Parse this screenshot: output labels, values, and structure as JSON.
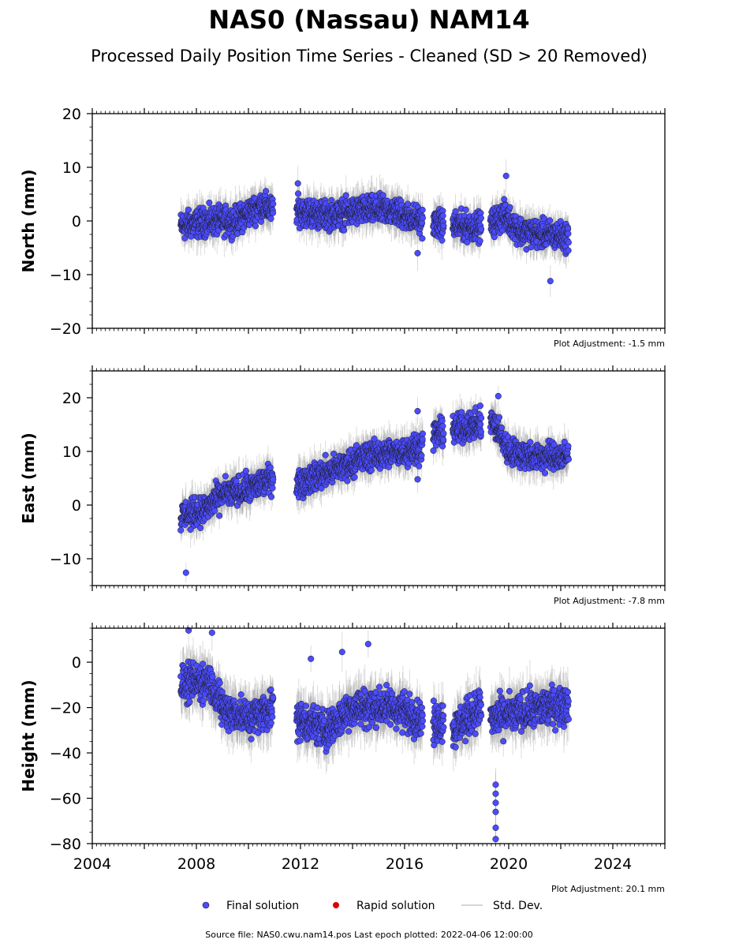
{
  "title": "NAS0 (Nassau) NAM14",
  "subtitle": "Processed Daily Position Time Series - Cleaned (SD > 20 Removed)",
  "source_text": "Source file: NAS0.cwu.nam14.pos  Last epoch plotted: 2022-04-06 12:00:00",
  "legend": [
    {
      "label": "Final solution",
      "color": "#4b4bff",
      "marker": "circle"
    },
    {
      "label": "Rapid solution",
      "color": "#dd0000",
      "marker": "circle"
    },
    {
      "label": "Std. Dev.",
      "color": "#c8c8c8",
      "marker": "line"
    }
  ],
  "colors": {
    "final": "#4b4bff",
    "final_edge": "#1a1a1a",
    "std_dev": "#9a9a9a"
  },
  "chart_data": [
    {
      "type": "scatter",
      "ylabel": "North (mm)",
      "xlim": [
        2004,
        2026
      ],
      "ylim": [
        -20,
        20
      ],
      "yticks": [
        "20",
        "10",
        "0",
        "−10",
        "−20"
      ],
      "ytick_values": [
        20,
        10,
        0,
        -10,
        -20
      ],
      "xticks": [],
      "adjustment": "Plot Adjustment: -1.5 mm",
      "trend": [
        [
          2007.4,
          -1
        ],
        [
          2008.5,
          0
        ],
        [
          2009.5,
          0
        ],
        [
          2010.5,
          3
        ],
        [
          2010.9,
          2
        ],
        [
          2011.9,
          2
        ],
        [
          2013,
          1
        ],
        [
          2014.5,
          2
        ],
        [
          2015.5,
          2
        ],
        [
          2016.6,
          0
        ],
        [
          2017.2,
          -0.5
        ],
        [
          2018.4,
          -1
        ],
        [
          2019.2,
          -1
        ],
        [
          2019.8,
          1
        ],
        [
          2020.5,
          -2
        ],
        [
          2022.3,
          -3
        ]
      ],
      "segments": [
        [
          2007.4,
          2010.95
        ],
        [
          2011.85,
          2016.7
        ],
        [
          2017.1,
          2017.5
        ],
        [
          2017.85,
          2018.95
        ],
        [
          2019.3,
          2022.3
        ]
      ],
      "spread": 2.2,
      "outliers": [
        [
          2021.6,
          -11.2
        ],
        [
          2019.9,
          8.4
        ],
        [
          2016.5,
          -6
        ],
        [
          2011.9,
          7
        ]
      ]
    },
    {
      "type": "scatter",
      "ylabel": "East (mm)",
      "xlim": [
        2004,
        2026
      ],
      "ylim": [
        -15,
        25
      ],
      "yticks": [
        "20",
        "10",
        "0",
        "−10"
      ],
      "ytick_values": [
        20,
        10,
        0,
        -10
      ],
      "xticks": [],
      "adjustment": "Plot Adjustment: -7.8 mm",
      "trend": [
        [
          2007.4,
          -2
        ],
        [
          2008.3,
          -1
        ],
        [
          2009,
          2
        ],
        [
          2010,
          3
        ],
        [
          2010.9,
          5
        ],
        [
          2011.85,
          4
        ],
        [
          2013,
          6
        ],
        [
          2014.5,
          9
        ],
        [
          2016,
          10
        ],
        [
          2016.7,
          11
        ],
        [
          2017.1,
          13
        ],
        [
          2017.5,
          14
        ],
        [
          2017.85,
          14
        ],
        [
          2018.9,
          15
        ],
        [
          2019.3,
          16
        ],
        [
          2019.7,
          13
        ],
        [
          2020,
          10
        ],
        [
          2021,
          9
        ],
        [
          2022.3,
          9
        ]
      ],
      "segments": [
        [
          2007.4,
          2010.95
        ],
        [
          2011.85,
          2016.7
        ],
        [
          2017.1,
          2017.5
        ],
        [
          2017.85,
          2018.95
        ],
        [
          2019.3,
          2022.3
        ]
      ],
      "spread": 2.2,
      "outliers": [
        [
          2007.6,
          -12.6
        ],
        [
          2016.5,
          17.5
        ],
        [
          2016.5,
          4.8
        ],
        [
          2019.6,
          20.3
        ]
      ]
    },
    {
      "type": "scatter",
      "ylabel": "Height (mm)",
      "xlim": [
        2004,
        2026
      ],
      "ylim": [
        -80,
        15
      ],
      "yticks": [
        "0",
        "−20",
        "−40",
        "−60",
        "−80"
      ],
      "ytick_values": [
        0,
        -20,
        -40,
        -60,
        -80
      ],
      "xticks": [
        "2004",
        "2008",
        "2012",
        "2016",
        "2020",
        "2024"
      ],
      "xtick_values": [
        2004,
        2008,
        2012,
        2016,
        2020,
        2024
      ],
      "adjustment": "Plot Adjustment: 20.1 mm",
      "trend": [
        [
          2007.4,
          -10
        ],
        [
          2008.5,
          -8
        ],
        [
          2009,
          -20
        ],
        [
          2010,
          -25
        ],
        [
          2010.9,
          -20
        ],
        [
          2011.85,
          -25
        ],
        [
          2013,
          -30
        ],
        [
          2014,
          -20
        ],
        [
          2015.5,
          -20
        ],
        [
          2016.7,
          -25
        ],
        [
          2017.1,
          -28
        ],
        [
          2017.5,
          -25
        ],
        [
          2017.85,
          -30
        ],
        [
          2018.9,
          -20
        ],
        [
          2019.3,
          -25
        ],
        [
          2020.5,
          -22
        ],
        [
          2022.3,
          -18
        ]
      ],
      "segments": [
        [
          2007.4,
          2010.95
        ],
        [
          2011.85,
          2016.7
        ],
        [
          2017.1,
          2017.5
        ],
        [
          2017.85,
          2018.95
        ],
        [
          2019.3,
          2022.3
        ]
      ],
      "spread": 7,
      "outliers": [
        [
          2019.5,
          -54
        ],
        [
          2019.5,
          -58
        ],
        [
          2019.5,
          -62
        ],
        [
          2019.5,
          -66
        ],
        [
          2019.5,
          -73
        ],
        [
          2019.5,
          -78
        ],
        [
          2007.7,
          14
        ],
        [
          2008.6,
          13
        ],
        [
          2014.6,
          8
        ],
        [
          2012.4,
          1.5
        ],
        [
          2013.6,
          4.5
        ]
      ]
    }
  ]
}
